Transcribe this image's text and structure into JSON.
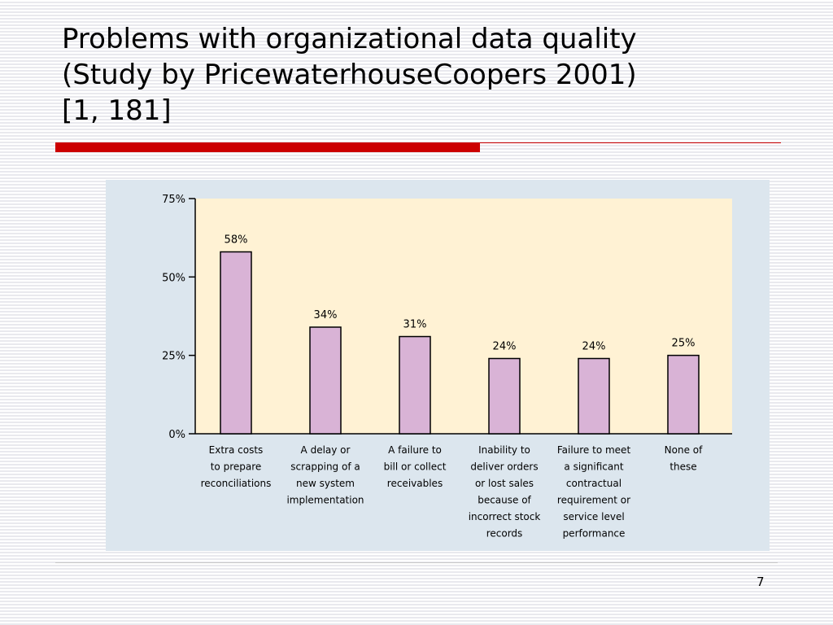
{
  "slide": {
    "title_lines": [
      "Problems with organizational data quality",
      "(Study by PricewaterhouseCoopers 2001)",
      "[1, 181]"
    ],
    "page_number": "7"
  },
  "colors": {
    "accent_red": "#cc0000",
    "panel_bg": "#dce6ee",
    "plot_bg": "#fff2d4",
    "bar_fill": "#d9b3d6"
  },
  "chart_data": {
    "type": "bar",
    "title": "",
    "xlabel": "",
    "ylabel": "",
    "ylim": [
      0,
      75
    ],
    "yticks": [
      0,
      25,
      50,
      75
    ],
    "ytick_labels": [
      "0%",
      "25%",
      "50%",
      "75%"
    ],
    "grid": false,
    "categories": [
      "Extra costs to prepare reconciliations",
      "A delay or scrapping of a new system implementation",
      "A failure to bill or collect receivables",
      "Inability to deliver orders or lost sales because of incorrect stock records",
      "Failure to meet a significant contractual requirement or service level performance",
      "None of these"
    ],
    "category_lines": [
      [
        "Extra costs",
        "to prepare",
        "reconciliations"
      ],
      [
        "A delay or",
        "scrapping of a",
        "new system",
        "implementation"
      ],
      [
        "A failure to",
        "bill or collect",
        "receivables"
      ],
      [
        "Inability to",
        "deliver orders",
        "or lost sales",
        "because of",
        "incorrect stock",
        "records"
      ],
      [
        "Failure to meet",
        "a significant",
        "contractual",
        "requirement or",
        "service level",
        "performance"
      ],
      [
        "None of",
        "these"
      ]
    ],
    "values": [
      58,
      34,
      31,
      24,
      24,
      25
    ],
    "value_labels": [
      "58%",
      "34%",
      "31%",
      "24%",
      "24%",
      "25%"
    ]
  }
}
